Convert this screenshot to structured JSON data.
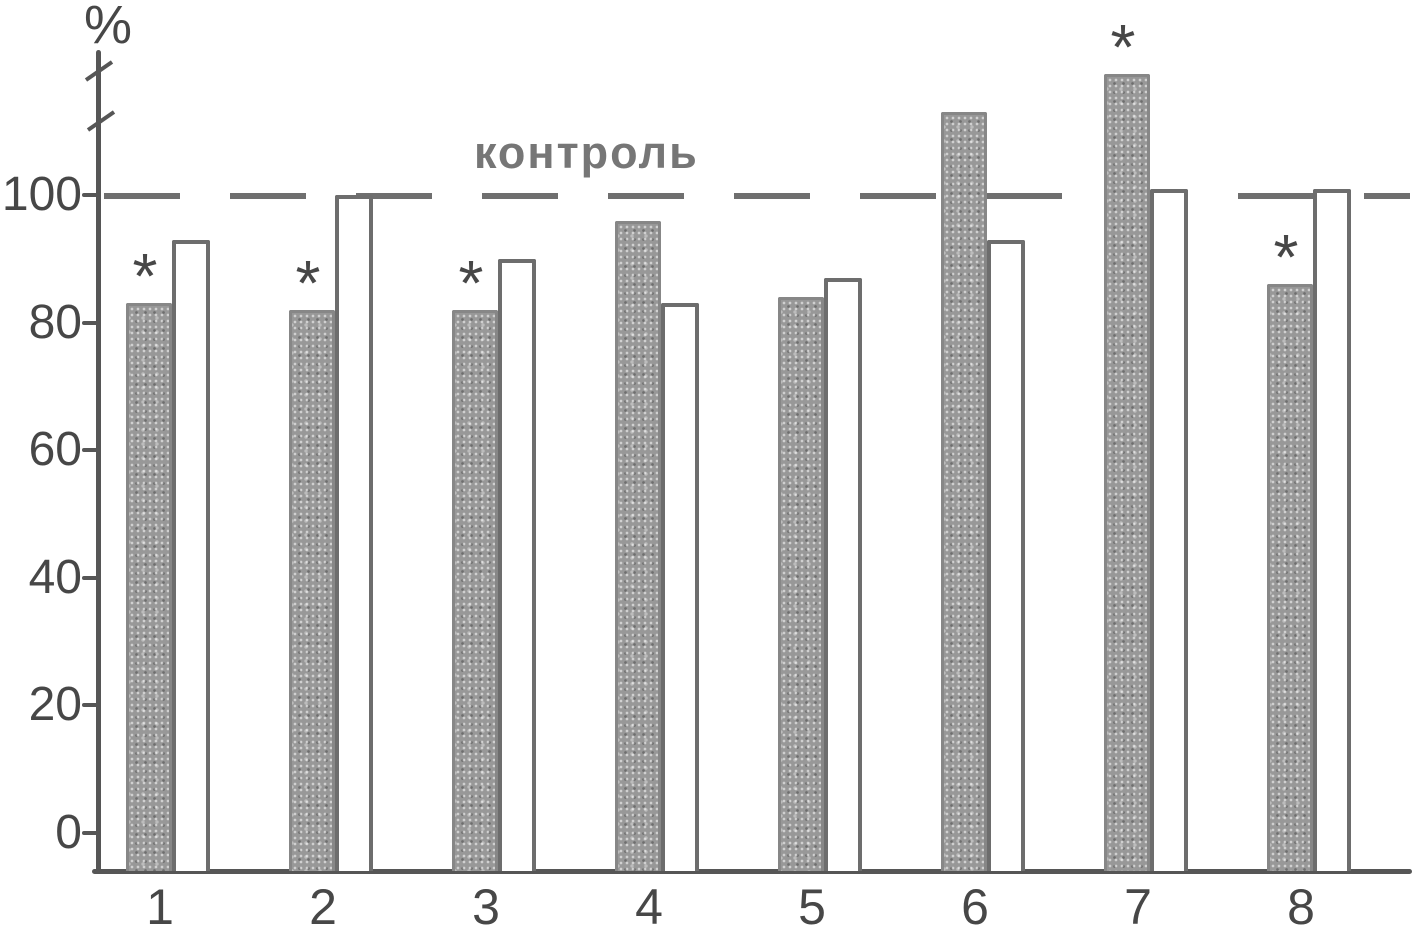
{
  "chart_data": {
    "type": "bar",
    "title": "",
    "ylabel": "%",
    "xlabel": "",
    "categories": [
      "1",
      "2",
      "3",
      "4",
      "5",
      "6",
      "7",
      "8"
    ],
    "series": [
      {
        "name": "filled_shaded_bars",
        "style": "shaded",
        "values": [
          83,
          82,
          82,
          96,
          84,
          113,
          119,
          86
        ]
      },
      {
        "name": "open_outline_bars",
        "style": "outline",
        "values": [
          93,
          100,
          90,
          83,
          87,
          93,
          101,
          101
        ]
      }
    ],
    "y_ticks": [
      "0",
      "20",
      "40",
      "60",
      "80",
      "100"
    ],
    "ylim": [
      0,
      125
    ],
    "grid": false,
    "legend_position": "none",
    "control_line": {
      "value": 100,
      "label": "контроль",
      "style": "dashed"
    },
    "significance": {
      "marker": "*",
      "on_filled_categories": [
        "1",
        "2",
        "3",
        "7",
        "8"
      ]
    }
  },
  "colors": {
    "background": "#ffffff",
    "bar_fill": "#989898",
    "bar_fill_edge": "#878787",
    "bar_outline": "#6d6d6d",
    "axis": "#565656",
    "text": "#474747",
    "control_line": "#6f6f6f",
    "control_text": "#767676"
  }
}
